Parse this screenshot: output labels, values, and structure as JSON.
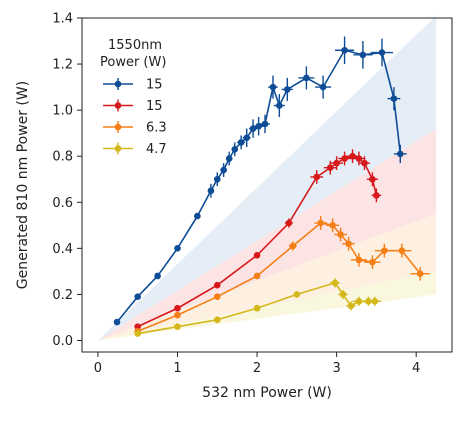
{
  "chart_data": {
    "type": "scatter",
    "xlabel": "532 nm Power (W)",
    "ylabel": "Generated 810 nm Power (W)",
    "xlim": [
      -0.2,
      4.45
    ],
    "ylim": [
      -0.05,
      1.4
    ],
    "xticks": [
      "0",
      "1",
      "2",
      "3",
      "4"
    ],
    "xtick_values": [
      0,
      1,
      2,
      3,
      4
    ],
    "yticks": [
      "0.0",
      "0.2",
      "0.4",
      "0.6",
      "0.8",
      "1.0",
      "1.2",
      "1.4"
    ],
    "ytick_values": [
      0,
      0.2,
      0.4,
      0.6,
      0.8,
      1.0,
      1.2,
      1.4
    ],
    "legend": {
      "title_line1": "1550nm",
      "title_line2": "Power (W)",
      "position": "upper-left"
    },
    "shaded_bands": [
      {
        "color": "#c6d6ec",
        "opacity": 0.45,
        "lower_at_0": 0.0,
        "lower_at_4_25": 0.92,
        "upper_at_0": 0.0,
        "upper_at_4_25": 1.41
      },
      {
        "color": "#f7b3b3",
        "opacity": 0.35,
        "lower_at_0": 0.0,
        "lower_at_4_25": 0.55,
        "upper_at_0": 0.0,
        "upper_at_4_25": 0.92
      },
      {
        "color": "#fbd4a8",
        "opacity": 0.35,
        "lower_at_0": 0.0,
        "lower_at_4_25": 0.3,
        "upper_at_0": 0.0,
        "upper_at_4_25": 0.55
      },
      {
        "color": "#f3ecb0",
        "opacity": 0.4,
        "lower_at_0": 0.0,
        "lower_at_4_25": 0.2,
        "upper_at_0": 0.0,
        "upper_at_4_25": 0.3
      }
    ],
    "series": [
      {
        "name": "15",
        "color": "#0e4d96",
        "x": [
          0.24,
          0.5,
          0.75,
          1.0,
          1.25,
          1.42,
          1.5,
          1.58,
          1.65,
          1.72,
          1.8,
          1.87,
          1.95,
          2.02,
          2.1,
          2.2,
          2.28,
          2.38,
          2.62,
          2.83,
          3.1,
          3.33,
          3.57,
          3.72,
          3.8
        ],
        "y": [
          0.08,
          0.19,
          0.28,
          0.4,
          0.54,
          0.65,
          0.7,
          0.74,
          0.79,
          0.83,
          0.86,
          0.88,
          0.92,
          0.93,
          0.94,
          1.1,
          1.02,
          1.09,
          1.14,
          1.1,
          1.26,
          1.24,
          1.25,
          1.05,
          0.81
        ],
        "xerr": [
          0.0,
          0.0,
          0.0,
          0.0,
          0.0,
          0.03,
          0.04,
          0.04,
          0.04,
          0.04,
          0.05,
          0.05,
          0.05,
          0.06,
          0.06,
          0.06,
          0.07,
          0.07,
          0.1,
          0.1,
          0.12,
          0.12,
          0.14,
          0.08,
          0.08
        ],
        "yerr": [
          0.0,
          0.0,
          0.0,
          0.0,
          0.0,
          0.03,
          0.03,
          0.03,
          0.03,
          0.03,
          0.03,
          0.04,
          0.04,
          0.04,
          0.04,
          0.05,
          0.05,
          0.05,
          0.05,
          0.05,
          0.06,
          0.06,
          0.06,
          0.05,
          0.04
        ]
      },
      {
        "name": "15",
        "color": "#d7191c",
        "x": [
          0.5,
          1.0,
          1.5,
          2.0,
          2.4,
          2.75,
          2.92,
          3.0,
          3.1,
          3.2,
          3.28,
          3.35,
          3.45,
          3.5
        ],
        "y": [
          0.06,
          0.14,
          0.24,
          0.37,
          0.51,
          0.71,
          0.75,
          0.77,
          0.79,
          0.8,
          0.79,
          0.77,
          0.7,
          0.63
        ],
        "xerr": [
          0.0,
          0.0,
          0.0,
          0.0,
          0.05,
          0.08,
          0.08,
          0.08,
          0.08,
          0.08,
          0.08,
          0.07,
          0.07,
          0.06
        ],
        "yerr": [
          0.0,
          0.0,
          0.0,
          0.0,
          0.02,
          0.03,
          0.03,
          0.03,
          0.03,
          0.03,
          0.03,
          0.03,
          0.03,
          0.03
        ]
      },
      {
        "name": "6.3",
        "color": "#f57f17",
        "x": [
          0.5,
          1.0,
          1.5,
          2.0,
          2.45,
          2.8,
          2.95,
          3.05,
          3.15,
          3.28,
          3.45,
          3.6,
          3.82,
          4.05
        ],
        "y": [
          0.04,
          0.11,
          0.19,
          0.28,
          0.41,
          0.51,
          0.5,
          0.46,
          0.42,
          0.35,
          0.34,
          0.39,
          0.39,
          0.29
        ],
        "xerr": [
          0.0,
          0.0,
          0.0,
          0.0,
          0.05,
          0.08,
          0.08,
          0.08,
          0.08,
          0.1,
          0.1,
          0.12,
          0.12,
          0.12
        ],
        "yerr": [
          0.0,
          0.0,
          0.0,
          0.0,
          0.02,
          0.03,
          0.03,
          0.03,
          0.03,
          0.03,
          0.03,
          0.03,
          0.03,
          0.03
        ]
      },
      {
        "name": "4.7",
        "color": "#d4b71a",
        "x": [
          0.5,
          1.0,
          1.5,
          2.0,
          2.5,
          2.98,
          3.08,
          3.18,
          3.28,
          3.4,
          3.48
        ],
        "y": [
          0.03,
          0.06,
          0.09,
          0.14,
          0.2,
          0.25,
          0.2,
          0.15,
          0.17,
          0.17,
          0.17
        ],
        "xerr": [
          0.0,
          0.0,
          0.0,
          0.0,
          0.0,
          0.06,
          0.06,
          0.06,
          0.08,
          0.08,
          0.08
        ],
        "yerr": [
          0.0,
          0.0,
          0.0,
          0.0,
          0.0,
          0.02,
          0.02,
          0.02,
          0.02,
          0.02,
          0.02
        ]
      }
    ]
  }
}
